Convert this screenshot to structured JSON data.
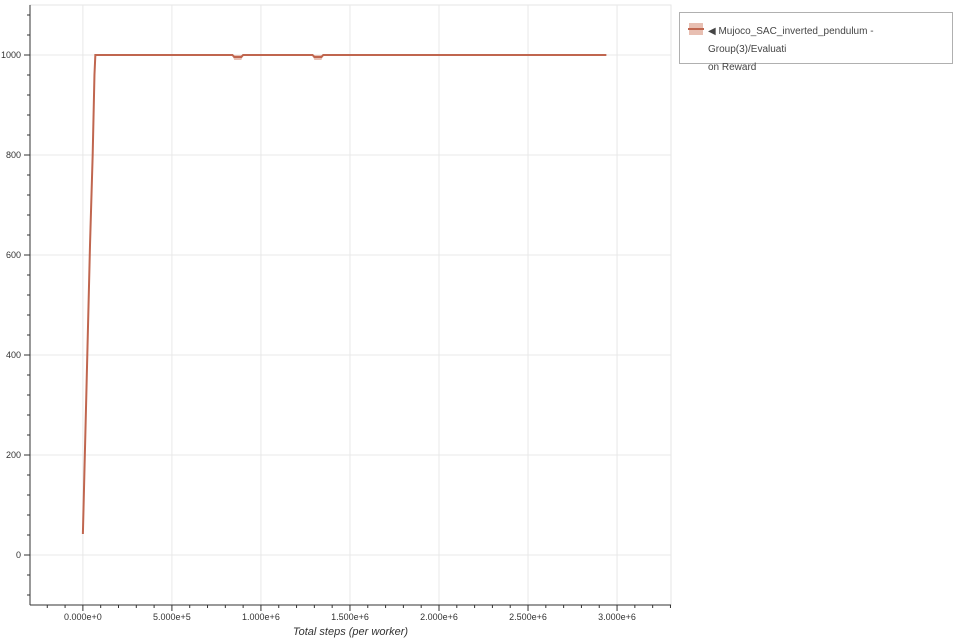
{
  "chart_data": {
    "type": "line",
    "title": "",
    "xlabel": "Total steps (per worker)",
    "ylabel": "",
    "xlim": [
      -297000,
      3303000
    ],
    "ylim": [
      -100,
      1100
    ],
    "grid": true,
    "legend_placement": "outside-top-right",
    "xticks": [
      0,
      500000,
      1000000,
      1500000,
      2000000,
      2500000,
      3000000
    ],
    "xtick_labels": [
      "0.000e+0",
      "5.000e+5",
      "1.000e+6",
      "1.500e+6",
      "2.000e+6",
      "2.500e+6",
      "3.000e+6"
    ],
    "yticks": [
      0,
      200,
      400,
      600,
      800,
      1000
    ],
    "ytick_labels": [
      "0",
      "200",
      "400",
      "600",
      "800",
      "1000"
    ],
    "series": [
      {
        "name": "Mujoco_SAC_inverted_pendulum - Group(3)/Evaluation Reward",
        "color": "#c0664f",
        "band_color": "#e8bfb2",
        "x": [
          0,
          20000,
          40000,
          55000,
          65000,
          70000,
          840000,
          850000,
          890000,
          900000,
          1290000,
          1300000,
          1340000,
          1350000,
          2940000
        ],
        "y": [
          42,
          330,
          620,
          800,
          960,
          1000,
          1000,
          996,
          996,
          1000,
          1000,
          996,
          996,
          1000,
          1000
        ],
        "band_low": [
          42,
          330,
          620,
          800,
          960,
          1000,
          1000,
          990,
          990,
          1000,
          1000,
          990,
          990,
          1000,
          1000
        ],
        "band_high": [
          42,
          330,
          620,
          800,
          960,
          1000,
          1000,
          1000,
          1000,
          1000,
          1000,
          1000,
          1000,
          1000,
          1000
        ]
      }
    ]
  },
  "legend": {
    "line1": "◀ Mujoco_SAC_inverted_pendulum - Group(3)/Evaluati",
    "line2": "on Reward"
  }
}
